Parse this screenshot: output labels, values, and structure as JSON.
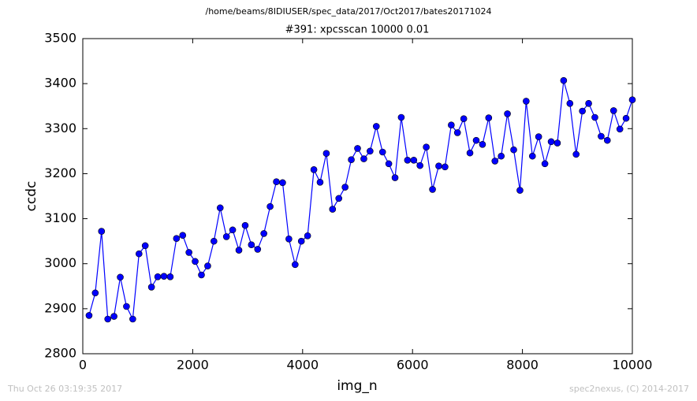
{
  "chart_data": {
    "type": "line",
    "suptitle": "/home/beams/8IDIUSER/spec_data/2017/Oct2017/bates20171024",
    "title": "#391: xpcsscan 10000 0.01",
    "x_label": "img_n",
    "y_label": "ccdc",
    "x": [
      114,
      227,
      341,
      455,
      568,
      682,
      795,
      909,
      1023,
      1136,
      1250,
      1364,
      1477,
      1591,
      1705,
      1818,
      1932,
      2045,
      2159,
      2273,
      2386,
      2500,
      2614,
      2727,
      2841,
      2955,
      3068,
      3182,
      3295,
      3409,
      3523,
      3636,
      3750,
      3864,
      3977,
      4091,
      4205,
      4318,
      4432,
      4545,
      4659,
      4773,
      4886,
      5000,
      5114,
      5227,
      5341,
      5455,
      5568,
      5682,
      5795,
      5909,
      6023,
      6136,
      6250,
      6364,
      6477,
      6591,
      6705,
      6818,
      6932,
      7045,
      7159,
      7273,
      7386,
      7500,
      7614,
      7727,
      7841,
      7955,
      8068,
      8182,
      8295,
      8409,
      8523,
      8636,
      8750,
      8864,
      8977,
      9091,
      9205,
      9318,
      9432,
      9545,
      9659,
      9773,
      9886,
      10000
    ],
    "series": [
      {
        "color": "#0000ff",
        "values": [
          2885,
          2935,
          3072,
          2877,
          2883,
          2970,
          2905,
          2877,
          3022,
          3040,
          2948,
          2971,
          2972,
          2971,
          3056,
          3063,
          3025,
          3005,
          2975,
          2995,
          3050,
          3124,
          3060,
          3075,
          3030,
          3085,
          3042,
          3032,
          3067,
          3127,
          3182,
          3180,
          3055,
          2998,
          3050,
          3062,
          3209,
          3181,
          3245,
          3121,
          3145,
          3170,
          3231,
          3256,
          3233,
          3250,
          3305,
          3248,
          3222,
          3191,
          3325,
          3230,
          3230,
          3218,
          3259,
          3165,
          3217,
          3215,
          3308,
          3291,
          3322,
          3246,
          3274,
          3265,
          3324,
          3228,
          3239,
          3333,
          3253,
          3163,
          3361,
          3239,
          3282,
          3222,
          3271,
          3268,
          3407,
          3356,
          3243,
          3339,
          3356,
          3325,
          3283,
          3274,
          3340,
          3299,
          3323,
          3364
        ]
      }
    ],
    "xlim": [
      0,
      10000
    ],
    "xticks": [
      0,
      2000,
      4000,
      6000,
      8000,
      10000
    ],
    "ylim": [
      2800,
      3500
    ],
    "yticks": [
      2800,
      2900,
      3000,
      3100,
      3200,
      3300,
      3400,
      3500
    ],
    "footer_left": "Thu Oct 26 03:19:35 2017",
    "footer_right": "spec2nexus, (C) 2014-2017"
  }
}
